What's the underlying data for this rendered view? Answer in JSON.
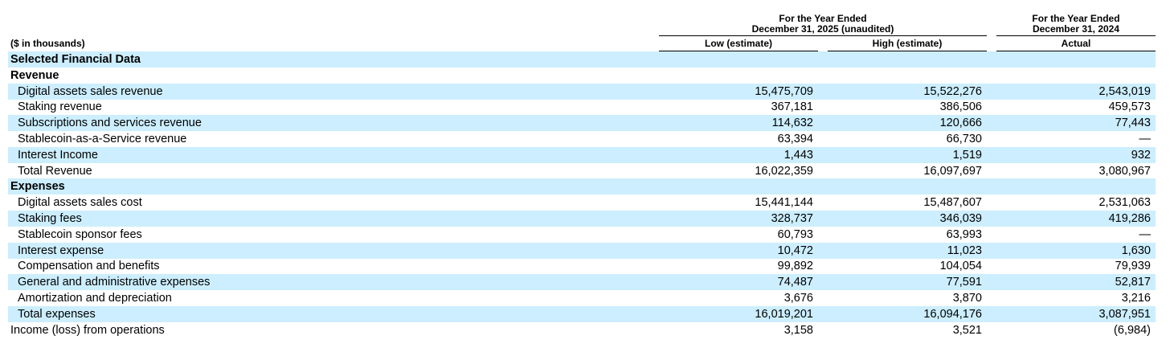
{
  "header": {
    "group_1": [
      "For the Year Ended",
      "December 31, 2025 (unaudited)"
    ],
    "group_2": [
      "For the Year Ended",
      "December 31, 2024"
    ],
    "units": "($ in thousands)",
    "columns": [
      "Low (estimate)",
      "High (estimate)",
      "Actual"
    ]
  },
  "table": {
    "rows": [
      [
        "Selected Financial Data",
        null,
        null,
        null
      ],
      [
        "Revenue",
        null,
        null,
        null
      ],
      [
        "Digital assets sales revenue",
        "15,475,709",
        "15,522,276",
        "2,543,019"
      ],
      [
        "Staking revenue",
        "367,181",
        "386,506",
        "459,573"
      ],
      [
        "Subscriptions and services revenue",
        "114,632",
        "120,666",
        "77,443"
      ],
      [
        "Stablecoin-as-a-Service revenue",
        "63,394",
        "66,730",
        "—"
      ],
      [
        "Interest Income",
        "1,443",
        "1,519",
        "932"
      ],
      [
        "Total Revenue",
        "16,022,359",
        "16,097,697",
        "3,080,967"
      ],
      [
        "Expenses",
        null,
        null,
        null
      ],
      [
        "Digital assets sales cost",
        "15,441,144",
        "15,487,607",
        "2,531,063"
      ],
      [
        "Staking fees",
        "328,737",
        "346,039",
        "419,286"
      ],
      [
        "Stablecoin sponsor fees",
        "60,793",
        "63,993",
        "—"
      ],
      [
        "Interest expense",
        "10,472",
        "11,023",
        "1,630"
      ],
      [
        "Compensation and benefits",
        "99,892",
        "104,054",
        "79,939"
      ],
      [
        "General and administrative expenses",
        "74,487",
        "77,591",
        "52,817"
      ],
      [
        "Amortization and depreciation",
        "3,676",
        "3,870",
        "3,216"
      ],
      [
        "Total expenses",
        "16,019,201",
        "16,094,176",
        "3,087,951"
      ],
      [
        "Income (loss) from operations",
        "3,158",
        "3,521",
        "(6,984)"
      ]
    ]
  }
}
